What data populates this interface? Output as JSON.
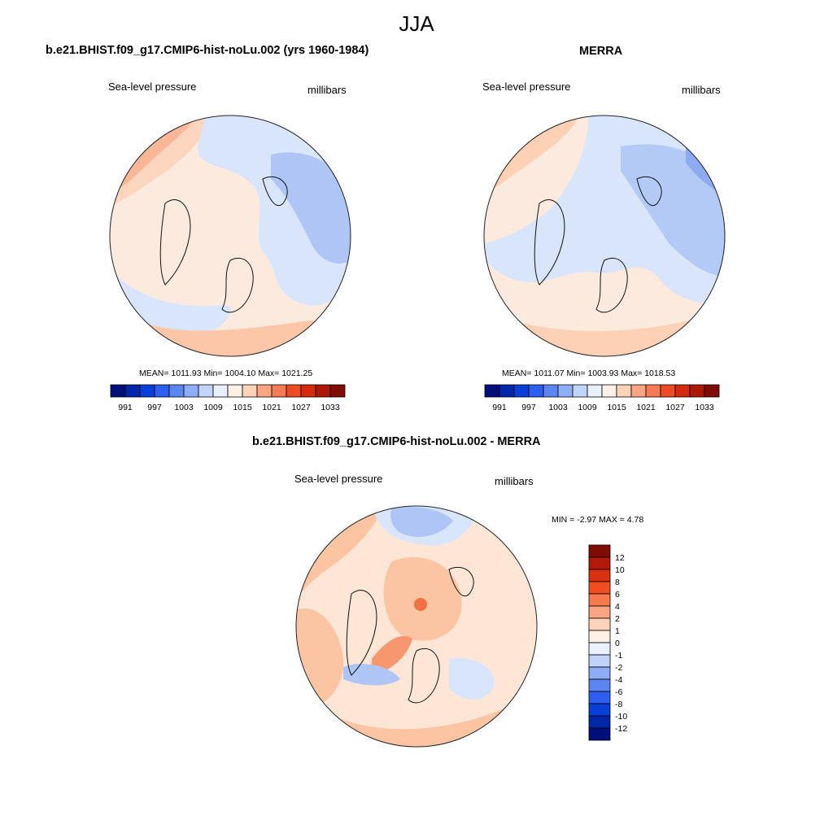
{
  "figure_title": "JJA",
  "panels": [
    {
      "title": "b.e21.BHIST.f09_g17.CMIP6-hist-noLu.002 (yrs 1960-1984)",
      "variable": "Sea-level pressure",
      "units": "millibars",
      "stats": "MEAN= 1011.93  Min= 1004.10  Max= 1021.25"
    },
    {
      "title": "MERRA",
      "variable": "Sea-level pressure",
      "units": "millibars",
      "stats": "MEAN= 1011.07  Min= 1003.93  Max= 1018.53"
    },
    {
      "title": "b.e21.BHIST.f09_g17.CMIP6-hist-noLu.002 - MERRA",
      "variable": "Sea-level pressure",
      "units": "millibars",
      "stats": "MIN =  -2.97 MAX =   4.78"
    }
  ],
  "colorbar_abs": {
    "labels": [
      "991",
      "997",
      "1003",
      "1009",
      "1015",
      "1021",
      "1027",
      "1033"
    ],
    "colors": [
      "#000f7a",
      "#0027a9",
      "#0a3ed8",
      "#2d5ef0",
      "#5b86f2",
      "#8fadf5",
      "#c2d4f8",
      "#e8f0fb",
      "#fdf0e6",
      "#fdd3b9",
      "#fba484",
      "#f57b55",
      "#ec4b26",
      "#d52a0c",
      "#ad1705",
      "#7f0c05"
    ]
  },
  "colorbar_diff": {
    "labels": [
      "12",
      "10",
      "8",
      "6",
      "4",
      "2",
      "1",
      "0",
      "-1",
      "-2",
      "-4",
      "-6",
      "-8",
      "-10",
      "-12"
    ],
    "colors": [
      "#7f0c05",
      "#b3190a",
      "#d8310f",
      "#f04e22",
      "#f77a4f",
      "#fba484",
      "#fdd3b9",
      "#fdf1e6",
      "#e9f1fc",
      "#c0d3f8",
      "#8fadf5",
      "#5b86f2",
      "#2d5ef0",
      "#0a3ed8",
      "#0027a9",
      "#000f7a"
    ]
  },
  "map_colors": {
    "model": {
      "base": "#fdeade",
      "warm1": "#fcc7a8",
      "warm2": "#f7a07f",
      "cool1": "#d9e5fb",
      "cool2": "#aec5f6"
    },
    "merra": {
      "base": "#fdeade",
      "warm1": "#fcd1b5",
      "warm2": "#f5a886",
      "cool1": "#d9e5fb",
      "cool2": "#b3c9f6",
      "cool3": "#8eaaf0"
    },
    "diff": {
      "base": "#fde6d6",
      "warm1": "#fbc4a3",
      "warm2": "#f7976f",
      "warm3": "#f06f45",
      "cool1": "#d9e5fb",
      "cool2": "#aec5f6",
      "cool3": "#7f9cef"
    }
  }
}
